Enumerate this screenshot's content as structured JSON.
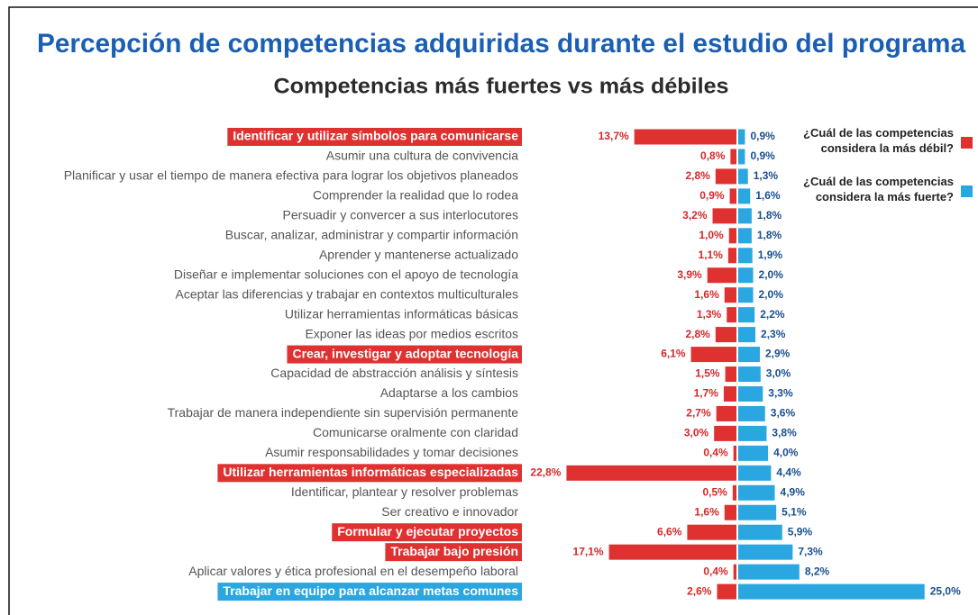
{
  "chart_data": {
    "type": "diverging-bar",
    "title": "Percepción de competencias adquiridas durante el estudio del programa",
    "subtitle": "Competencias más fuertes vs más débiles",
    "categories": [
      "Identificar y utilizar símbolos para comunicarse",
      "Asumir una cultura de convivencia",
      "Planificar y usar el tiempo de manera efectiva para lograr los objetivos planeados",
      "Comprender la realidad que lo rodea",
      "Persuadir y convercer a sus interlocutores",
      "Buscar, analizar, administrar y compartir información",
      "Aprender y mantenerse actualizado",
      "Diseñar e implementar soluciones con el apoyo de tecnología",
      "Aceptar las diferencias y  trabajar en contextos multiculturales",
      "Utilizar herramientas informáticas básicas",
      "Exponer las ideas por medios escritos",
      "Crear, investigar y adoptar tecnología",
      "Capacidad de abstracción análisis y síntesis",
      "Adaptarse a los cambios",
      "Trabajar de manera independiente sin supervisión permanente",
      "Comunicarse oralmente con claridad",
      "Asumir responsabilidades y tomar decisiones",
      "Utilizar herramientas informáticas especializadas",
      "Identificar, plantear y resolver problemas",
      "Ser creativo e innovador",
      "Formular y ejecutar proyectos",
      "Trabajar bajo presión",
      "Aplicar valores y ética profesional en el desempeño laboral",
      "Trabajar en equipo para alcanzar metas comunes"
    ],
    "label_backgrounds": [
      "#e03131",
      null,
      null,
      null,
      null,
      null,
      null,
      null,
      null,
      null,
      null,
      "#e03131",
      null,
      null,
      null,
      null,
      null,
      "#e03131",
      null,
      null,
      "#e03131",
      "#e03131",
      null,
      "#2aa7e0"
    ],
    "series": [
      {
        "name": "¿Cuál de las competencias considera la más débil?",
        "color": "#e03131",
        "label_color": "#d62828",
        "side": "left",
        "values": [
          13.7,
          0.8,
          2.8,
          0.9,
          3.2,
          1.0,
          1.1,
          3.9,
          1.6,
          1.3,
          2.8,
          6.1,
          1.5,
          1.7,
          2.7,
          3.0,
          0.4,
          22.8,
          0.5,
          1.6,
          6.6,
          17.1,
          0.4,
          2.6
        ],
        "value_labels": [
          "13,7%",
          "0,8%",
          "2,8%",
          "0,9%",
          "3,2%",
          "1,0%",
          "1,1%",
          "3,9%",
          "1,6%",
          "1,3%",
          "2,8%",
          "6,1%",
          "1,5%",
          "1,7%",
          "2,7%",
          "3,0%",
          "0,4%",
          "22,8%",
          "0,5%",
          "1,6%",
          "6,6%",
          "17,1%",
          "0,4%",
          "2,6%"
        ]
      },
      {
        "name": "¿Cuál de las competencias considera la más fuerte?",
        "color": "#2aa7e0",
        "label_color": "#1a4f8f",
        "side": "right",
        "values": [
          0.9,
          0.9,
          1.3,
          1.6,
          1.8,
          1.8,
          1.9,
          2.0,
          2.0,
          2.2,
          2.3,
          2.9,
          3.0,
          3.3,
          3.6,
          3.8,
          4.0,
          4.4,
          4.9,
          5.1,
          5.9,
          7.3,
          8.2,
          25.0
        ],
        "value_labels": [
          "0,9%",
          "0,9%",
          "1,3%",
          "1,6%",
          "1,8%",
          "1,8%",
          "1,9%",
          "2,0%",
          "2,0%",
          "2,2%",
          "2,3%",
          "2,9%",
          "3,0%",
          "3,3%",
          "3,6%",
          "3,8%",
          "4,0%",
          "4,4%",
          "4,9%",
          "5,1%",
          "5,9%",
          "7,3%",
          "8,2%",
          "25,0%"
        ]
      }
    ]
  }
}
